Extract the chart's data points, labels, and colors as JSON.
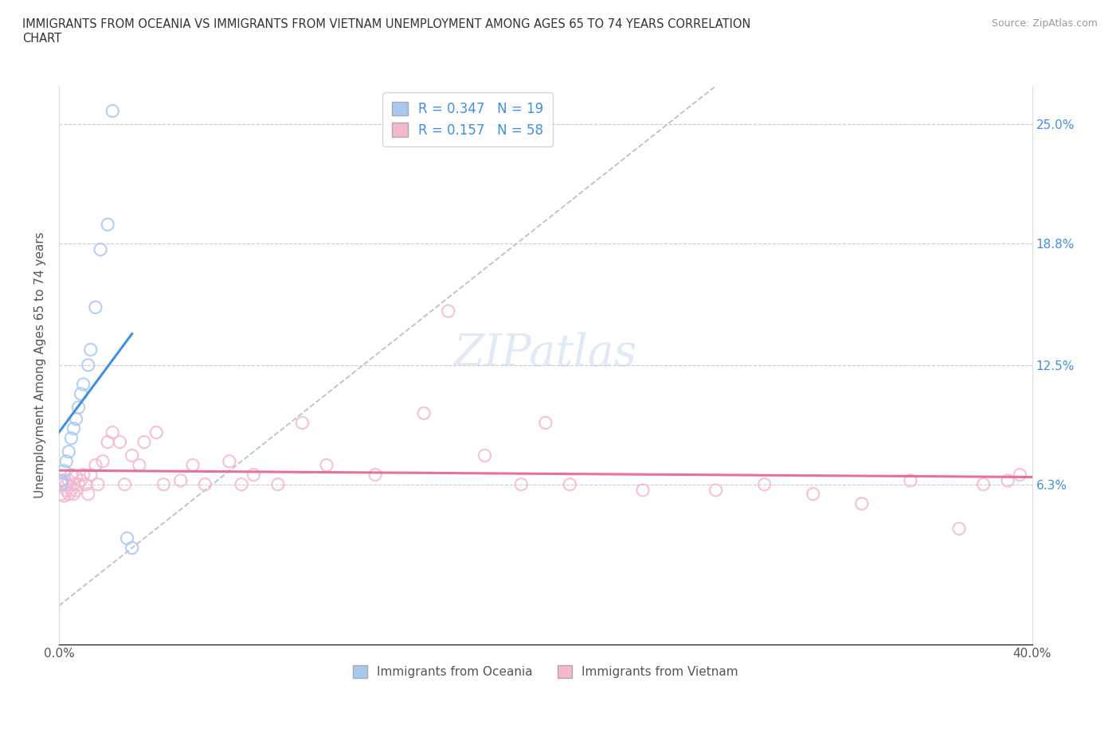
{
  "title": "IMMIGRANTS FROM OCEANIA VS IMMIGRANTS FROM VIETNAM UNEMPLOYMENT AMONG AGES 65 TO 74 YEARS CORRELATION\nCHART",
  "source_text": "Source: ZipAtlas.com",
  "ylabel": "Unemployment Among Ages 65 to 74 years",
  "xlim": [
    0.0,
    0.4
  ],
  "ylim": [
    -0.02,
    0.27
  ],
  "ytick_positions": [
    0.063,
    0.125,
    0.188,
    0.25
  ],
  "right_ytick_labels": [
    "6.3%",
    "12.5%",
    "18.8%",
    "25.0%"
  ],
  "R_oceania": 0.347,
  "N_oceania": 19,
  "R_vietnam": 0.157,
  "N_vietnam": 58,
  "color_oceania": "#a8c8f0",
  "color_vietnam": "#f4b8ce",
  "line_color_oceania": "#4090e0",
  "line_color_vietnam": "#e87098",
  "diagonal_color": "#c0c0c0",
  "watermark": "ZIPatlas",
  "oceania_x": [
    0.001,
    0.001,
    0.002,
    0.003,
    0.004,
    0.005,
    0.006,
    0.007,
    0.008,
    0.009,
    0.01,
    0.012,
    0.013,
    0.015,
    0.017,
    0.02,
    0.022,
    0.028,
    0.03
  ],
  "oceania_y": [
    0.063,
    0.065,
    0.07,
    0.075,
    0.08,
    0.087,
    0.092,
    0.097,
    0.103,
    0.11,
    0.115,
    0.125,
    0.133,
    0.155,
    0.185,
    0.198,
    0.257,
    0.035,
    0.03
  ],
  "vietnam_x": [
    0.001,
    0.001,
    0.002,
    0.002,
    0.003,
    0.003,
    0.004,
    0.004,
    0.005,
    0.005,
    0.006,
    0.006,
    0.007,
    0.007,
    0.008,
    0.009,
    0.01,
    0.011,
    0.012,
    0.013,
    0.015,
    0.016,
    0.018,
    0.02,
    0.022,
    0.025,
    0.027,
    0.03,
    0.033,
    0.035,
    0.04,
    0.043,
    0.05,
    0.055,
    0.06,
    0.07,
    0.075,
    0.08,
    0.09,
    0.1,
    0.11,
    0.13,
    0.15,
    0.16,
    0.175,
    0.19,
    0.2,
    0.21,
    0.24,
    0.27,
    0.29,
    0.31,
    0.33,
    0.35,
    0.37,
    0.38,
    0.39,
    0.395
  ],
  "vietnam_y": [
    0.063,
    0.058,
    0.065,
    0.057,
    0.063,
    0.06,
    0.065,
    0.058,
    0.068,
    0.06,
    0.063,
    0.058,
    0.067,
    0.06,
    0.063,
    0.065,
    0.068,
    0.063,
    0.058,
    0.068,
    0.073,
    0.063,
    0.075,
    0.085,
    0.09,
    0.085,
    0.063,
    0.078,
    0.073,
    0.085,
    0.09,
    0.063,
    0.065,
    0.073,
    0.063,
    0.075,
    0.063,
    0.068,
    0.063,
    0.095,
    0.073,
    0.068,
    0.1,
    0.153,
    0.078,
    0.063,
    0.095,
    0.063,
    0.06,
    0.06,
    0.063,
    0.058,
    0.053,
    0.065,
    0.04,
    0.063,
    0.065,
    0.068
  ]
}
